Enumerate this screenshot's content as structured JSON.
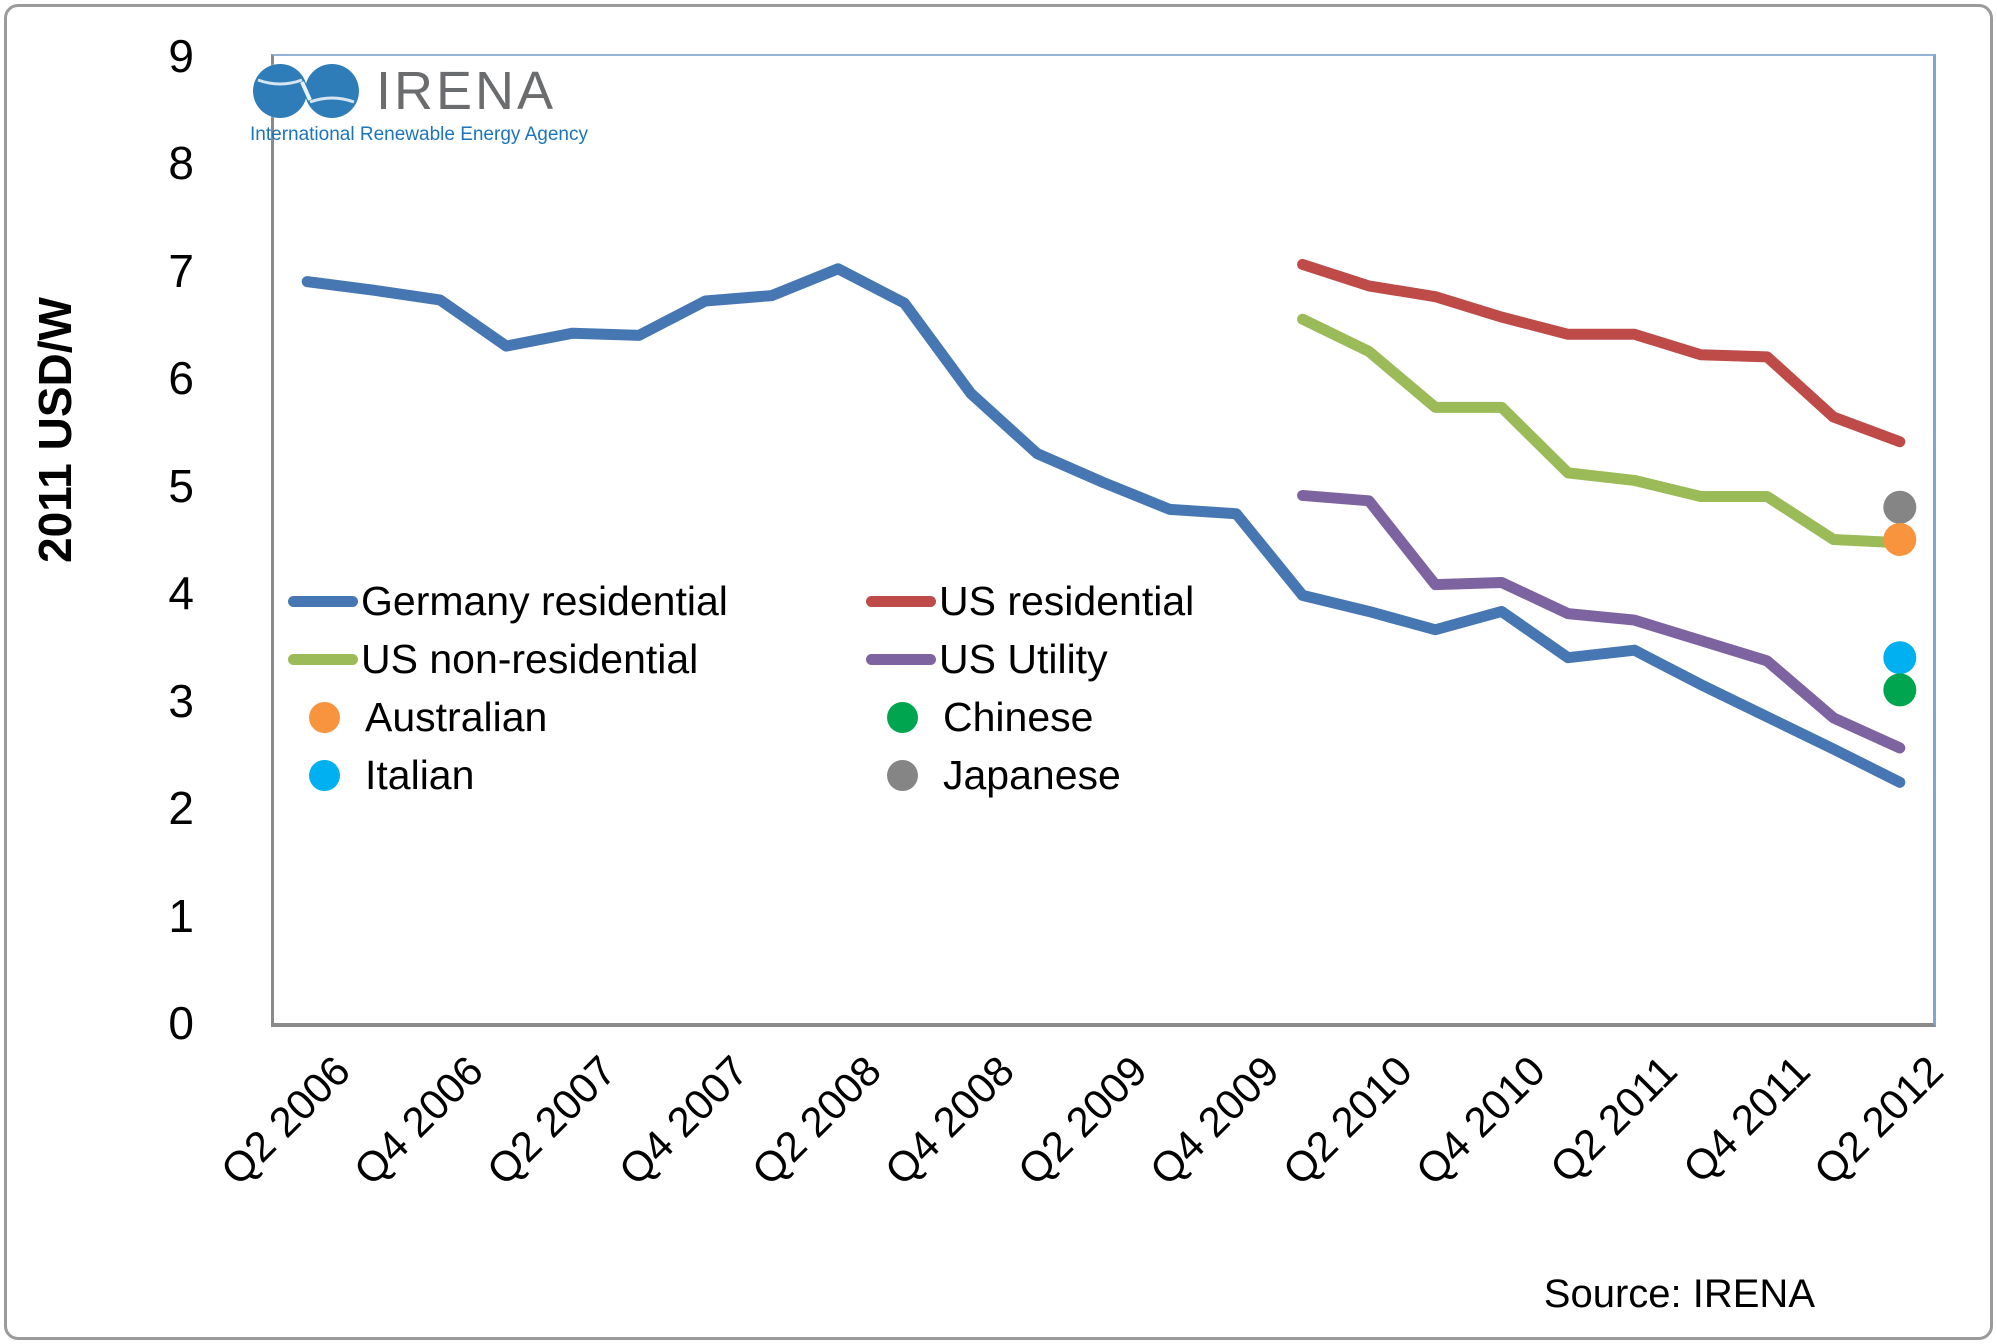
{
  "logo": {
    "name": "IRENA",
    "subtitle": "International Renewable Energy Agency"
  },
  "axes": {
    "y_title": "2011 USD/W",
    "y_ticks": [
      0,
      1,
      2,
      3,
      4,
      5,
      6,
      7,
      8,
      9
    ],
    "x_tick_labels": [
      "Q2 2006",
      "Q4 2006",
      "Q2 2007",
      "Q4 2007",
      "Q2 2008",
      "Q4 2008",
      "Q2 2009",
      "Q4 2009",
      "Q2 2010",
      "Q4 2010",
      "Q2 2011",
      "Q4 2011",
      "Q2 2012"
    ]
  },
  "chart_data": {
    "type": "line",
    "title": "",
    "xlabel": "",
    "ylabel": "2011 USD/W",
    "ylim": [
      0,
      9
    ],
    "grid": false,
    "legend_position": "inside bottom-left, two columns",
    "x": [
      "Q2 2006",
      "Q3 2006",
      "Q4 2006",
      "Q1 2007",
      "Q2 2007",
      "Q3 2007",
      "Q4 2007",
      "Q1 2008",
      "Q2 2008",
      "Q3 2008",
      "Q4 2008",
      "Q1 2009",
      "Q2 2009",
      "Q3 2009",
      "Q4 2009",
      "Q1 2010",
      "Q2 2010",
      "Q3 2010",
      "Q4 2010",
      "Q1 2011",
      "Q2 2011",
      "Q3 2011",
      "Q4 2011",
      "Q1 2012",
      "Q2 2012"
    ],
    "series": [
      {
        "name": "Germany residential",
        "color": "#4677B2",
        "start_index": 0,
        "values": [
          6.9,
          6.82,
          6.73,
          6.3,
          6.42,
          6.4,
          6.72,
          6.77,
          7.02,
          6.7,
          5.86,
          5.3,
          5.03,
          4.78,
          4.74,
          3.98,
          3.83,
          3.66,
          3.83,
          3.4,
          3.47,
          3.15,
          2.85,
          2.55,
          2.24
        ]
      },
      {
        "name": "US residential",
        "color": "#BE4B48",
        "start_index": 15,
        "values": [
          7.06,
          6.86,
          6.76,
          6.57,
          6.41,
          6.41,
          6.22,
          6.2,
          5.64,
          5.41
        ]
      },
      {
        "name": "US non-residential",
        "color": "#9BBB59",
        "start_index": 15,
        "values": [
          6.55,
          6.25,
          5.73,
          5.73,
          5.12,
          5.05,
          4.9,
          4.9,
          4.5,
          4.47
        ]
      },
      {
        "name": "US Utility",
        "color": "#7E63A1",
        "start_index": 15,
        "values": [
          4.91,
          4.86,
          4.08,
          4.1,
          3.81,
          3.75,
          3.56,
          3.37,
          2.84,
          2.56
        ]
      }
    ],
    "point_markers": [
      {
        "name": "Japanese",
        "color": "#858585",
        "x": "Q2 2012",
        "value": 4.8
      },
      {
        "name": "Australian",
        "color": "#F7943D",
        "x": "Q2 2012",
        "value": 4.5
      },
      {
        "name": "Italian",
        "color": "#00B0F0",
        "x": "Q2 2012",
        "value": 3.4
      },
      {
        "name": "Chinese",
        "color": "#00A550",
        "x": "Q2 2012",
        "value": 3.1
      }
    ]
  },
  "legend": {
    "items": [
      {
        "label": "Germany residential",
        "color": "#4677B2",
        "marker": "line"
      },
      {
        "label": "US residential",
        "color": "#BE4B48",
        "marker": "line"
      },
      {
        "label": "US non-residential",
        "color": "#9BBB59",
        "marker": "line"
      },
      {
        "label": "US Utility",
        "color": "#7E63A1",
        "marker": "line"
      },
      {
        "label": "Australian",
        "color": "#F7943D",
        "marker": "dot"
      },
      {
        "label": "Chinese",
        "color": "#00A550",
        "marker": "dot"
      },
      {
        "label": "Italian",
        "color": "#00B0F0",
        "marker": "dot"
      },
      {
        "label": "Japanese",
        "color": "#858585",
        "marker": "dot"
      }
    ]
  },
  "source": "Source: IRENA"
}
